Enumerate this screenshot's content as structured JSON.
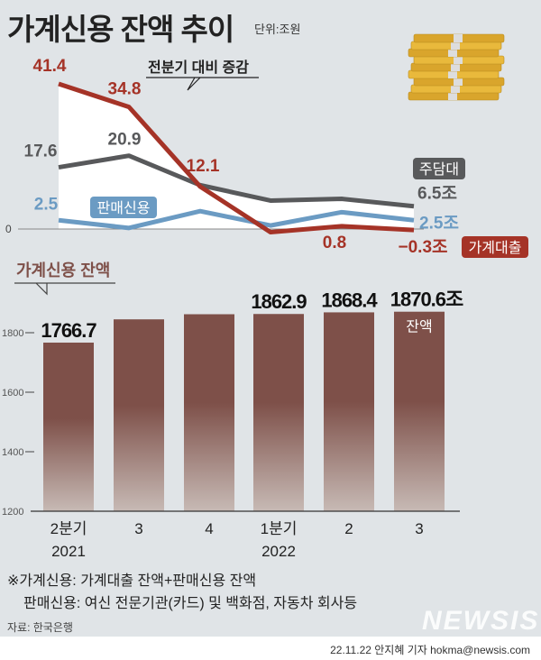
{
  "header": {
    "title": "가계신용 잔액 추이",
    "unit": "단위:조원"
  },
  "colors": {
    "household_loan": "#a53327",
    "mortgage": "#58595b",
    "sales_credit": "#6b9bc3",
    "bar": "#7e5049",
    "background": "#e0e4e7"
  },
  "chart_data": [
    {
      "type": "line",
      "title": "전분기 대비 증감",
      "categories": [
        "2분기 2021",
        "3",
        "4",
        "1분기 2022",
        "2",
        "3"
      ],
      "zero_label": "0",
      "ylim": [
        -2,
        43
      ],
      "series": [
        {
          "name": "가계대출",
          "key": "household_loan",
          "values": [
            41.4,
            34.8,
            12.1,
            -0.9,
            0.8,
            -0.3
          ],
          "labels": [
            "41.4",
            "34.8",
            "12.1",
            "",
            "0.8",
            "−0.3조"
          ]
        },
        {
          "name": "주담대",
          "key": "mortgage",
          "values": [
            17.6,
            20.9,
            12.5,
            8.1,
            8.6,
            6.5
          ],
          "labels": [
            "17.6",
            "20.9",
            "",
            "",
            "",
            "6.5조"
          ]
        },
        {
          "name": "판매신용",
          "key": "sales_credit",
          "values": [
            2.5,
            0.3,
            5.1,
            1.0,
            4.8,
            2.5
          ],
          "labels": [
            "2.5",
            "",
            "",
            "",
            "",
            "2.5조"
          ]
        }
      ]
    },
    {
      "type": "bar",
      "title": "가계신용 잔액",
      "categories": [
        [
          "2분기",
          "2021"
        ],
        [
          "3",
          ""
        ],
        [
          "4",
          ""
        ],
        [
          "1분기",
          "2022"
        ],
        [
          "2",
          ""
        ],
        [
          "3",
          ""
        ]
      ],
      "values": [
        1766.7,
        1844.9,
        1862.1,
        1862.9,
        1868.4,
        1870.6
      ],
      "value_labels": [
        "1766.7",
        "",
        "",
        "1862.9",
        "1868.4",
        "1870.6조"
      ],
      "inner_label": "잔액",
      "yticks": [
        1200,
        1400,
        1600,
        1800
      ],
      "ylim": [
        1200,
        1900
      ]
    }
  ],
  "notes": {
    "line1_term": "※가계신용:",
    "line1_def": "가계대출 잔액+판매신용 잔액",
    "line2_term": "판매신용:",
    "line2_def": "여신 전문기관(카드) 및 백화점, 자동차 회사등"
  },
  "source": "자료: 한국은행",
  "watermark": "NEWSIS",
  "credit": "22.11.22 안지혜 기자 hokma@newsis.com"
}
